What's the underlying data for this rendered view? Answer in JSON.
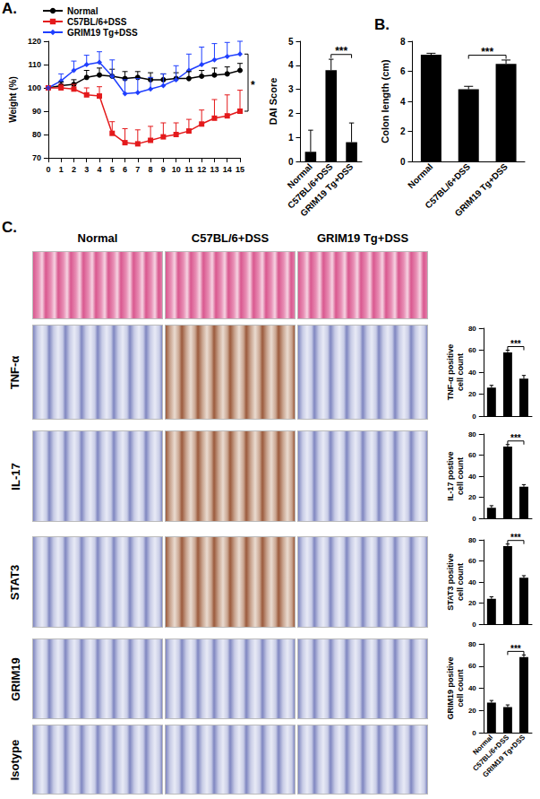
{
  "panels": [
    "A.",
    "B.",
    "C."
  ],
  "micrographs": {
    "columns": [
      "Normal",
      "C57BL/6+DSS",
      "GRIM19 Tg+DSS"
    ],
    "rows": [
      null,
      "TNF-α",
      "IL-17",
      "STAT3",
      "GRIM19",
      "Isotype"
    ]
  },
  "chart_data": [
    {
      "type": "line",
      "y_label": "Weight (%)",
      "x": [
        0,
        1,
        2,
        3,
        4,
        5,
        6,
        7,
        8,
        9,
        10,
        11,
        12,
        13,
        14,
        15
      ],
      "xlim": [
        0,
        15
      ],
      "xticks": [
        0,
        1,
        2,
        3,
        4,
        5,
        6,
        7,
        8,
        9,
        10,
        11,
        12,
        13,
        14,
        15
      ],
      "ylim": [
        70,
        120
      ],
      "yticks": [
        70,
        80,
        90,
        100,
        110,
        120
      ],
      "legend": "top-left",
      "series": [
        {
          "name": "Normal",
          "color": "#000000",
          "marker": "circle",
          "values": [
            100,
            101,
            101.5,
            104.5,
            105.5,
            105,
            104,
            104.5,
            103.5,
            103.5,
            104,
            104,
            105,
            105.5,
            106,
            107.5
          ],
          "error": [
            0,
            1.5,
            2,
            3,
            3,
            3,
            3,
            2.5,
            3,
            2.5,
            2.5,
            3,
            2.5,
            3,
            3,
            3
          ]
        },
        {
          "name": "C57BL/6+DSS",
          "color": "#e41a1c",
          "marker": "square",
          "values": [
            100,
            100,
            99.5,
            97,
            96.5,
            80.5,
            76.5,
            76,
            77.5,
            79,
            80,
            81.5,
            84.5,
            87,
            88,
            90
          ],
          "error": [
            0,
            1.5,
            2,
            3,
            4,
            5,
            6,
            6,
            6,
            6,
            5,
            5,
            6,
            8,
            9,
            9
          ]
        },
        {
          "name": "GRIM19 Tg+DSS",
          "color": "#1f3fff",
          "marker": "diamond",
          "values": [
            100,
            103,
            107.5,
            110,
            111,
            105,
            97.5,
            98,
            99.5,
            101,
            103.5,
            107.5,
            110,
            112,
            113.5,
            114.5
          ],
          "error": [
            0,
            3,
            4,
            4,
            4.5,
            7,
            6,
            6,
            5,
            5,
            6,
            7,
            7.5,
            7,
            6,
            5.5
          ]
        }
      ],
      "significance": [
        {
          "text": "*",
          "between": [
            "C57BL/6+DSS",
            "GRIM19 Tg+DSS"
          ]
        }
      ]
    },
    {
      "type": "bar",
      "y_label": "DAI Score",
      "categories": [
        "Normal",
        "C57BL/6+DSS",
        "GRIM19 Tg+DSS"
      ],
      "values": [
        0.4,
        3.8,
        0.8
      ],
      "error": [
        0.9,
        0.45,
        0.8
      ],
      "color": "#000000",
      "ylim": [
        0,
        5
      ],
      "yticks": [
        0,
        1,
        2,
        3,
        4,
        5
      ],
      "significance": [
        {
          "text": "***",
          "between": [
            "C57BL/6+DSS",
            "GRIM19 Tg+DSS"
          ]
        }
      ]
    },
    {
      "type": "bar",
      "y_label": "Colon length (cm)",
      "categories": [
        "Normal",
        "C57BL/6+DSS",
        "GRIM19 Tg+DSS"
      ],
      "values": [
        7.1,
        4.8,
        6.5
      ],
      "error": [
        0.1,
        0.2,
        0.25
      ],
      "color": "#000000",
      "ylim": [
        0,
        8
      ],
      "yticks": [
        0,
        2,
        4,
        6,
        8
      ],
      "significance": [
        {
          "text": "***",
          "between": [
            "C57BL/6+DSS",
            "GRIM19 Tg+DSS"
          ]
        }
      ]
    },
    {
      "type": "bar",
      "y_label": "TNF-α positive cell count",
      "tick_labels": "y",
      "categories": [
        "Normal",
        "C57BL/6+DSS",
        "GRIM19 Tg+DSS"
      ],
      "values": [
        26,
        58,
        34
      ],
      "error": [
        2,
        2,
        3
      ],
      "color": "#000000",
      "ylim": [
        0,
        80
      ],
      "yticks": [
        0,
        20,
        40,
        60,
        80
      ],
      "significance": [
        {
          "text": "***",
          "between": [
            "C57BL/6+DSS",
            "GRIM19 Tg+DSS"
          ]
        }
      ]
    },
    {
      "type": "bar",
      "y_label": "IL-17 postive cell count",
      "tick_labels": "y",
      "categories": [
        "Normal",
        "C57BL/6+DSS",
        "GRIM19 Tg+DSS"
      ],
      "values": [
        10,
        68,
        30
      ],
      "error": [
        2,
        2,
        2
      ],
      "color": "#000000",
      "ylim": [
        0,
        80
      ],
      "yticks": [
        0,
        20,
        40,
        60,
        80
      ],
      "significance": [
        {
          "text": "***",
          "between": [
            "C57BL/6+DSS",
            "GRIM19 Tg+DSS"
          ]
        }
      ]
    },
    {
      "type": "bar",
      "y_label": "STAT3 positive cell count",
      "tick_labels": "y",
      "categories": [
        "Normal",
        "C57BL/6+DSS",
        "GRIM19 Tg+DSS"
      ],
      "values": [
        24,
        74,
        44
      ],
      "error": [
        2,
        2,
        2
      ],
      "color": "#000000",
      "ylim": [
        0,
        80
      ],
      "yticks": [
        0,
        20,
        40,
        60,
        80
      ],
      "significance": [
        {
          "text": "***",
          "between": [
            "C57BL/6+DSS",
            "GRIM19 Tg+DSS"
          ]
        }
      ]
    },
    {
      "type": "bar",
      "y_label": "GRIM19 positive cell count",
      "categories": [
        "Normal",
        "C57BL/6+DSS",
        "GRIM19 Tg+DSS"
      ],
      "values": [
        27,
        23,
        68
      ],
      "error": [
        2,
        2,
        2
      ],
      "color": "#000000",
      "ylim": [
        0,
        80
      ],
      "yticks": [
        0,
        20,
        40,
        60,
        80
      ],
      "significance": [
        {
          "text": "***",
          "between": [
            "C57BL/6+DSS",
            "GRIM19 Tg+DSS"
          ]
        }
      ]
    }
  ]
}
